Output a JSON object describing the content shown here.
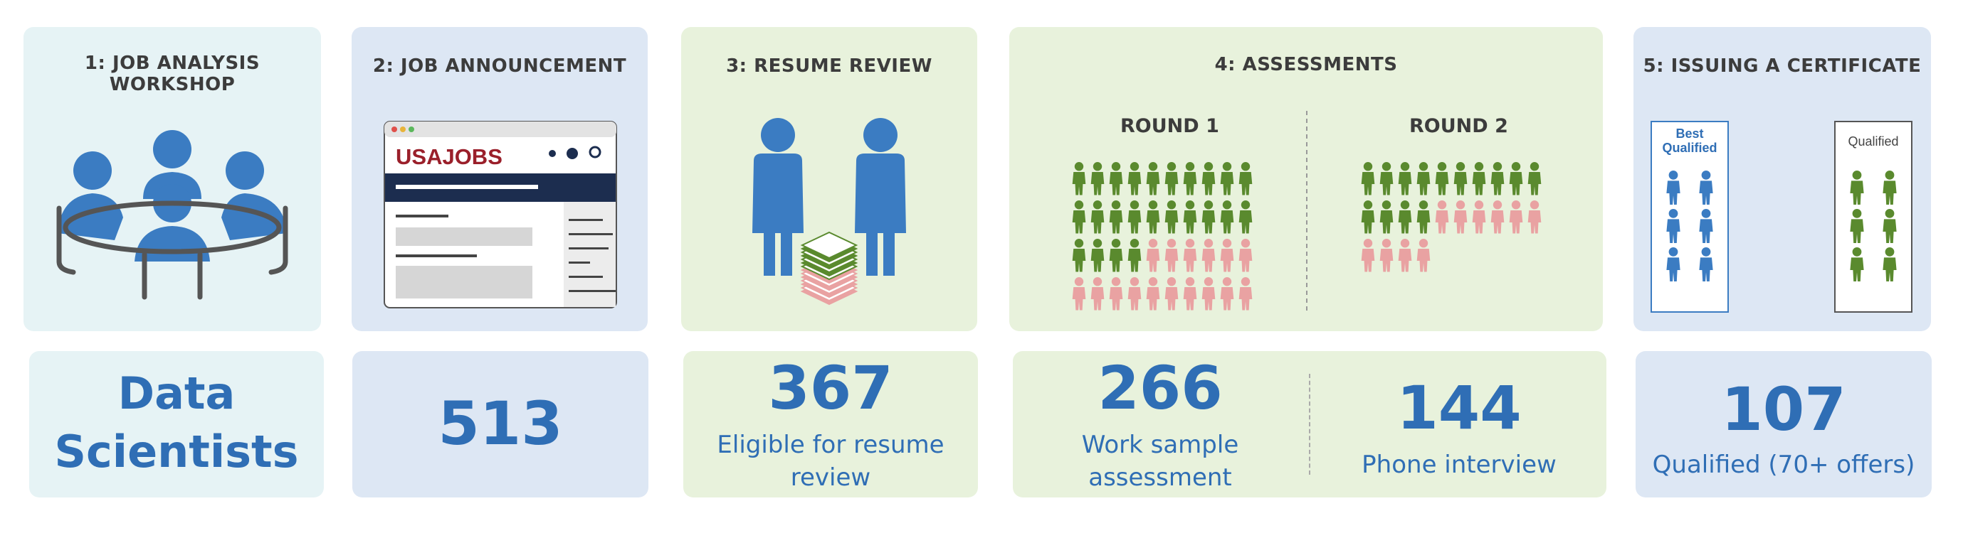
{
  "stages": [
    {
      "title": "1: JOB ANALYSIS WORKSHOP"
    },
    {
      "title": "2: JOB ANNOUNCEMENT"
    },
    {
      "title": "3: RESUME REVIEW"
    },
    {
      "title": "4: ASSESSMENTS",
      "round1": "ROUND 1",
      "round2": "ROUND 2"
    },
    {
      "title": "5: ISSUING A CERTIFICATE",
      "box_left": "Best Qualified",
      "box_right": "Qualified"
    }
  ],
  "browser_logo": "USAJOBS",
  "results": {
    "role_line1": "Data",
    "role_line2": "Scientists",
    "announcement_count": "513",
    "resume_count": "367",
    "resume_label_line1": "Eligible for resume",
    "resume_label_line2": "review",
    "work_sample_count": "266",
    "work_sample_label_line1": "Work sample",
    "work_sample_label_line2": "assessment",
    "phone_count": "144",
    "phone_label": "Phone interview",
    "qualified_count": "107",
    "qualified_label": "Qualified (70+ offers)"
  },
  "colors": {
    "blue": "#2f6eb5",
    "person_blue": "#3b7cc2",
    "green": "#5a8a2e",
    "pink": "#e9a2a2",
    "usajobs_red": "#9a1f2a",
    "navy": "#1c2d4f"
  },
  "icons": [
    "meeting-table-icon",
    "browser-window-icon",
    "person-icon",
    "resume-stack-icon"
  ]
}
